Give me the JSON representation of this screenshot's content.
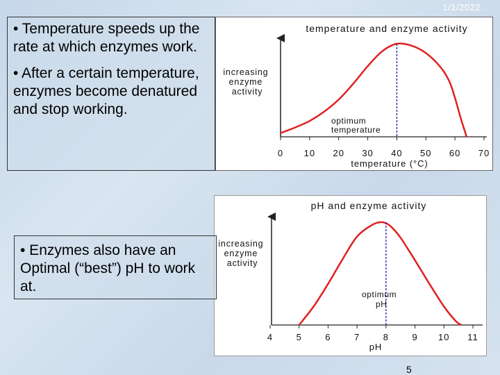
{
  "slide": {
    "date": "1/1/2022",
    "page_number": "5",
    "text_box_1": {
      "bullet_1": "• Temperature speeds up the rate at which enzymes work.",
      "bullet_2": "• After a certain temperature, enzymes become denatured and stop working."
    },
    "text_box_2": {
      "bullet_1": "• Enzymes also have an Optimal (“best”) pH to work at."
    }
  },
  "chart_data": [
    {
      "type": "line",
      "title": "temperature and enzyme activity",
      "xlabel": "temperature (°C)",
      "ylabel": "increasing enzyme activity",
      "xlim": [
        0,
        70
      ],
      "xticks": [
        "0",
        "10",
        "20",
        "30",
        "40",
        "50",
        "60",
        "70"
      ],
      "annotation": "optimum temperature",
      "optimum_x": 40,
      "series": [
        {
          "x": [
            0,
            5,
            10,
            15,
            20,
            25,
            30,
            35,
            40,
            45,
            50,
            55,
            58,
            60,
            62,
            64
          ],
          "y": [
            0.04,
            0.1,
            0.17,
            0.27,
            0.4,
            0.57,
            0.76,
            0.92,
            1.0,
            0.98,
            0.9,
            0.75,
            0.6,
            0.42,
            0.2,
            0.0
          ]
        }
      ],
      "color": "#e02020",
      "optimum_line_color": "#1a1aa8"
    },
    {
      "type": "line",
      "title": "pH and enzyme activity",
      "xlabel": "pH",
      "ylabel": "increasing enzyme activity",
      "xlim": [
        4,
        11
      ],
      "xticks": [
        "4",
        "5",
        "6",
        "7",
        "8",
        "9",
        "10",
        "11"
      ],
      "annotation": "optimum pH",
      "optimum_x": 8,
      "series": [
        {
          "x": [
            5.0,
            5.5,
            6.0,
            6.5,
            7.0,
            7.5,
            7.8,
            8.0,
            8.2,
            8.5,
            9.0,
            9.5,
            10.0,
            10.4,
            10.6
          ],
          "y": [
            0.0,
            0.18,
            0.4,
            0.64,
            0.86,
            0.97,
            1.0,
            0.99,
            0.95,
            0.85,
            0.63,
            0.4,
            0.18,
            0.04,
            0.0
          ]
        }
      ],
      "color": "#e02020",
      "optimum_line_color": "#1a1aa8"
    }
  ]
}
